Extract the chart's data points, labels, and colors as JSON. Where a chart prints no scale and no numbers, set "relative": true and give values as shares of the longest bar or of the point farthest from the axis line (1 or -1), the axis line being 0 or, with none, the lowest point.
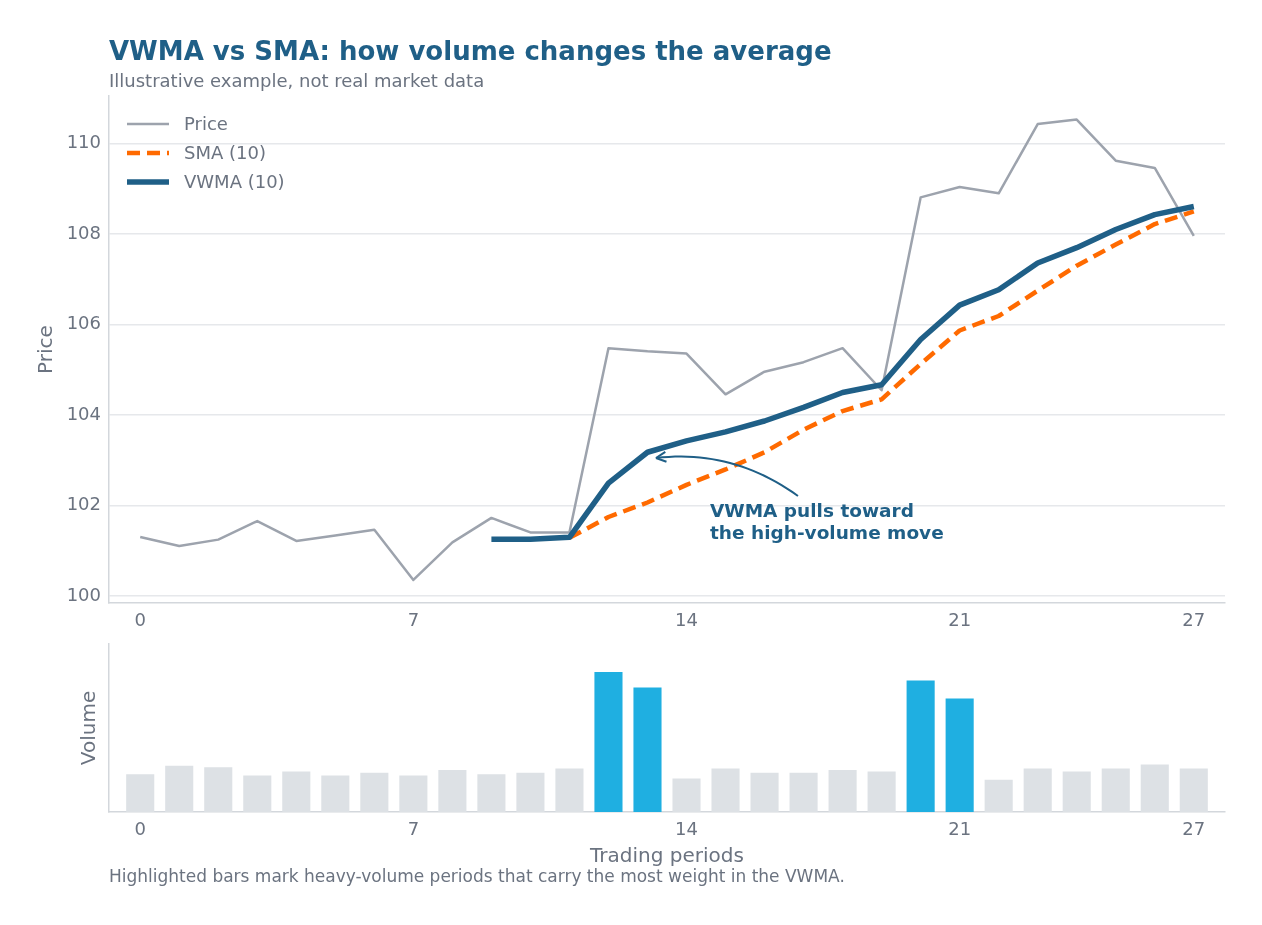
{
  "chart_data": [
    {
      "type": "line",
      "title": "VWMA vs SMA: how volume changes the average",
      "subtitle": "Illustrative example, not real market data",
      "ylabel": "Price",
      "x": [
        0,
        1,
        2,
        3,
        4,
        5,
        6,
        7,
        8,
        9,
        10,
        11,
        12,
        13,
        14,
        15,
        16,
        17,
        18,
        19,
        20,
        21,
        22,
        23,
        24,
        25,
        26,
        27
      ],
      "series": [
        {
          "name": "Price",
          "color": "#9da3ad",
          "line_style": "solid",
          "values": [
            101.31,
            101.11,
            101.25,
            101.66,
            101.22,
            101.34,
            101.47,
            100.36,
            101.19,
            101.73,
            101.41,
            101.41,
            105.48,
            105.41,
            105.36,
            104.46,
            104.96,
            105.17,
            105.48,
            104.55,
            108.81,
            109.04,
            108.9,
            110.43,
            110.53,
            109.62,
            109.46,
            107.96
          ]
        },
        {
          "name": "SMA (10)",
          "color": "#ff6a00",
          "line_style": "dashed",
          "values": [
            null,
            null,
            null,
            null,
            null,
            null,
            null,
            null,
            null,
            null,
            null,
            101.29,
            101.75,
            102.07,
            102.46,
            102.8,
            103.18,
            103.68,
            104.09,
            104.35,
            105.13,
            105.87,
            106.19,
            106.75,
            107.3,
            107.77,
            108.22,
            108.5
          ]
        },
        {
          "name": "VWMA (10)",
          "color": "#1f5f87",
          "line_style": "solid",
          "values": [
            null,
            null,
            null,
            null,
            null,
            null,
            null,
            null,
            null,
            101.26,
            101.26,
            101.3,
            102.5,
            103.18,
            103.43,
            103.63,
            103.87,
            104.17,
            104.5,
            104.67,
            105.67,
            106.43,
            106.77,
            107.36,
            107.7,
            108.1,
            108.43,
            108.61
          ]
        }
      ],
      "xlim": [
        -0.8,
        27.8
      ],
      "xticks": [
        0,
        7,
        14,
        21,
        27
      ],
      "ylim": [
        99.85,
        111.05
      ],
      "yticks": [
        100,
        102,
        104,
        106,
        108,
        110
      ],
      "grid": "y",
      "legend": "top left",
      "marker": "none",
      "annotations": [
        "VWMA pulls toward\nthe high-volume move"
      ]
    },
    {
      "type": "bar",
      "xlabel": "Trading periods",
      "ylabel": "Volume",
      "relative": true,
      "x": [
        0,
        1,
        2,
        3,
        4,
        5,
        6,
        7,
        8,
        9,
        10,
        11,
        12,
        13,
        14,
        15,
        16,
        17,
        18,
        19,
        20,
        21,
        22,
        23,
        24,
        25,
        26,
        27
      ],
      "values": [
        0.27,
        0.33,
        0.32,
        0.26,
        0.29,
        0.26,
        0.28,
        0.26,
        0.3,
        0.27,
        0.28,
        0.31,
        1,
        0.89,
        0.24,
        0.31,
        0.28,
        0.28,
        0.3,
        0.29,
        0.94,
        0.81,
        0.23,
        0.31,
        0.29,
        0.31,
        0.34,
        0.31
      ],
      "colors": [
        "#dde1e5",
        "#dde1e5",
        "#dde1e5",
        "#dde1e5",
        "#dde1e5",
        "#dde1e5",
        "#dde1e5",
        "#dde1e5",
        "#dde1e5",
        "#dde1e5",
        "#dde1e5",
        "#dde1e5",
        "#1fafe1",
        "#1fafe1",
        "#dde1e5",
        "#dde1e5",
        "#dde1e5",
        "#dde1e5",
        "#dde1e5",
        "#dde1e5",
        "#1fafe1",
        "#1fafe1",
        "#dde1e5",
        "#dde1e5",
        "#dde1e5",
        "#dde1e5",
        "#dde1e5",
        "#dde1e5"
      ],
      "xlim": [
        -0.8,
        27.8
      ],
      "xticks": [
        0,
        7,
        14,
        21,
        27
      ],
      "tick_labels": "x",
      "grid": false,
      "legend": false,
      "annotations": [
        "Highlighted bars mark heavy-volume periods that carry the most weight in the VWMA."
      ]
    }
  ]
}
